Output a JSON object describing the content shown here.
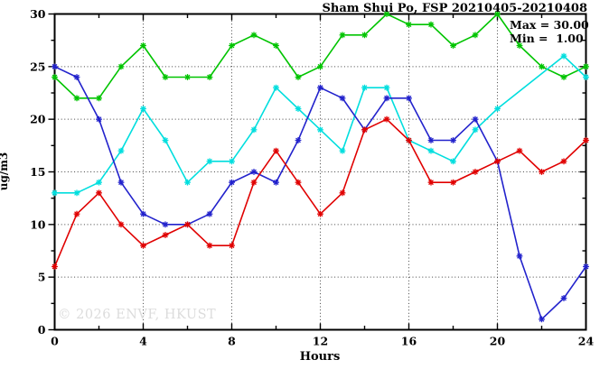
{
  "title": "Sham Shui Po, FSP 20210405-20210408",
  "legend": {
    "max_label": "Max = 30.00",
    "min_label": "Min =  1.00"
  },
  "watermark": "© 2026 ENVF, HKUST",
  "chart_data": {
    "type": "line",
    "title": "Sham Shui Po, FSP 20210405-20210408",
    "xlabel": "Hours",
    "ylabel": "ug/m3",
    "xlim": [
      0,
      24
    ],
    "ylim": [
      0,
      30
    ],
    "x_tick_labels": [
      0,
      4,
      8,
      12,
      16,
      20,
      24
    ],
    "y_tick_labels": [
      0,
      5,
      10,
      15,
      20,
      25,
      30
    ],
    "x_minor_step": 2,
    "y_minor_step": 2.5,
    "x_gridlines": [
      4,
      8,
      12,
      16,
      20
    ],
    "y_gridlines": [
      5,
      10,
      15,
      20,
      25
    ],
    "grid_color": "#444444",
    "axis_color": "#000000",
    "x": [
      0,
      1,
      2,
      3,
      4,
      5,
      6,
      7,
      8,
      9,
      10,
      11,
      12,
      13,
      14,
      15,
      16,
      17,
      18,
      19,
      20,
      21,
      22,
      23,
      24
    ],
    "series": [
      {
        "name": "green-series",
        "color": "#00c400",
        "values": [
          24,
          22,
          22,
          25,
          27,
          24,
          24,
          24,
          27,
          28,
          27,
          24,
          25,
          28,
          28,
          30,
          29,
          29,
          27,
          28,
          30,
          27,
          25,
          24,
          25
        ]
      },
      {
        "name": "cyan-series",
        "color": "#00dede",
        "values": [
          13,
          13,
          14,
          17,
          21,
          18,
          14,
          16,
          16,
          19,
          23,
          21,
          19,
          17,
          23,
          23,
          18,
          17,
          16,
          19,
          21,
          null,
          null,
          26,
          24
        ]
      },
      {
        "name": "blue-series",
        "color": "#2222cc",
        "values": [
          25,
          24,
          20,
          14,
          11,
          10,
          10,
          11,
          14,
          15,
          14,
          18,
          23,
          22,
          19,
          22,
          22,
          18,
          18,
          20,
          16,
          7,
          1,
          3,
          6
        ]
      },
      {
        "name": "red-series",
        "color": "#e00000",
        "values": [
          6,
          11,
          13,
          10,
          8,
          9,
          10,
          8,
          8,
          14,
          17,
          14,
          11,
          13,
          19,
          20,
          18,
          14,
          14,
          15,
          16,
          17,
          15,
          16,
          18
        ]
      }
    ],
    "annotations": [
      "Max = 30.00",
      "Min =  1.00"
    ],
    "legend_position": "top-right-inside",
    "legend_stats": {
      "max": "30.00",
      "min": "1.00"
    }
  }
}
